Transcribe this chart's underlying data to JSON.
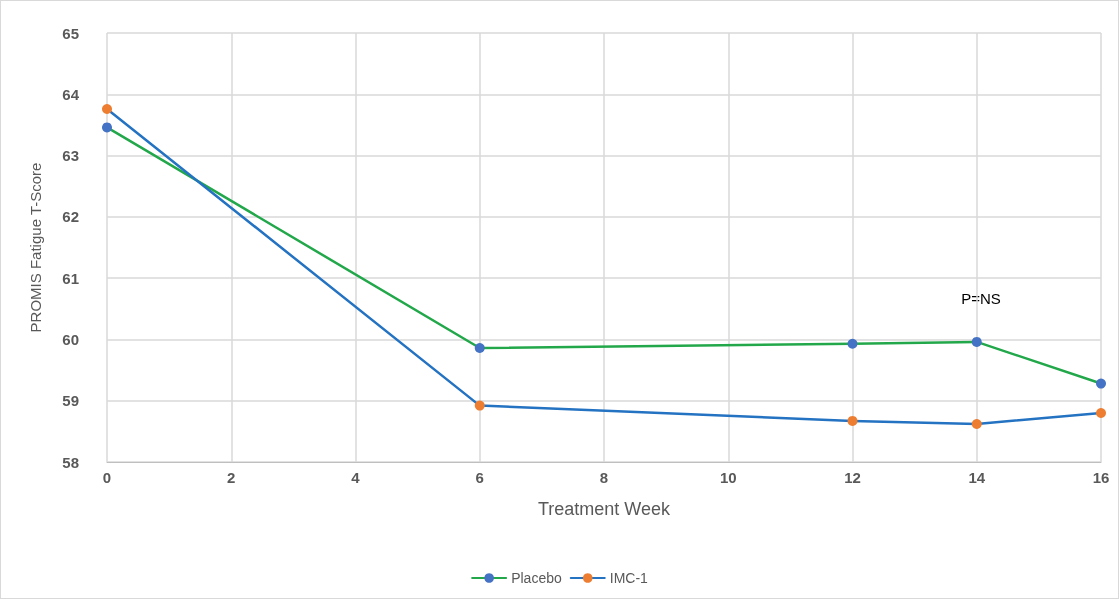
{
  "chart_data": {
    "type": "line",
    "xlabel": "Treatment Week",
    "ylabel": "PROMIS Fatigue T-Score",
    "x": [
      0,
      6,
      12,
      14,
      16
    ],
    "series": [
      {
        "name": "Placebo",
        "color": "#22a84a",
        "colors": [
          "#4472c4",
          "#4472c4",
          "#4472c4",
          "#4472c4",
          "#4472c4"
        ],
        "values": [
          63.46,
          59.86,
          59.93,
          59.96,
          59.28
        ]
      },
      {
        "name": "IMC-1",
        "color": "#2472c2",
        "colors": [
          "#ed7d31",
          "#ed7d31",
          "#ed7d31",
          "#ed7d31",
          "#ed7d31"
        ],
        "values": [
          63.76,
          58.92,
          58.67,
          58.62,
          58.8
        ]
      }
    ],
    "annotations": [
      "P=NS"
    ],
    "xlim": [
      0,
      16
    ],
    "xticks": [
      0,
      2,
      4,
      6,
      8,
      10,
      12,
      14,
      16
    ],
    "ylim": [
      58,
      65
    ],
    "yticks": [
      58,
      59,
      60,
      61,
      62,
      63,
      64,
      65
    ],
    "grid": true,
    "legend": "bottom",
    "marker": "circle",
    "line_style": "solid"
  }
}
